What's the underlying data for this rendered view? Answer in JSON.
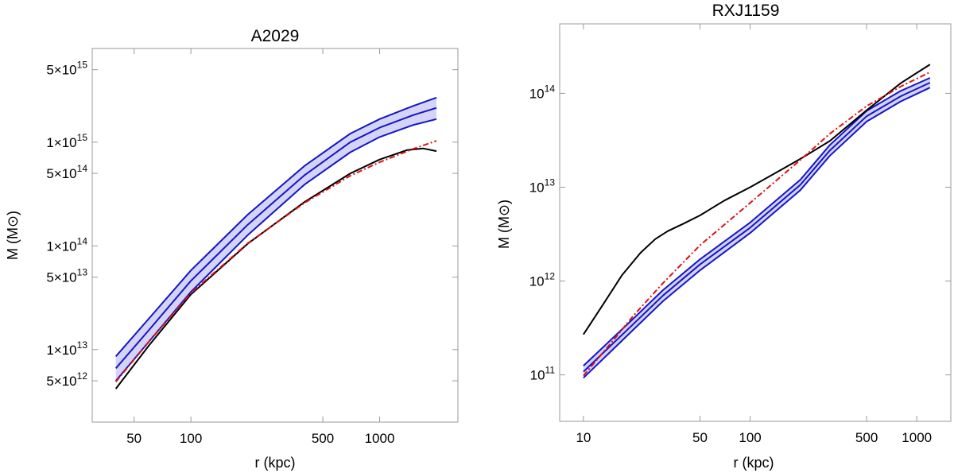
{
  "chart_data": [
    {
      "type": "line",
      "title": "A2029",
      "xlabel": "r (kpc)",
      "ylabel": "M (M⊙)",
      "x_scale": "log",
      "y_scale": "log",
      "xlim": [
        30,
        2600
      ],
      "ylim": [
        2000000000000.0,
        8000000000000000.0
      ],
      "x_ticks": [
        {
          "value": 50,
          "label": "50"
        },
        {
          "value": 100,
          "label": "100"
        },
        {
          "value": 500,
          "label": "500"
        },
        {
          "value": 1000,
          "label": "1000"
        }
      ],
      "y_ticks": [
        {
          "value": 5000000000000.0,
          "mant": "5",
          "exp": "12"
        },
        {
          "value": 10000000000000.0,
          "mant": "1",
          "exp": "13"
        },
        {
          "value": 50000000000000.0,
          "mant": "5",
          "exp": "13"
        },
        {
          "value": 100000000000000.0,
          "mant": "1",
          "exp": "14"
        },
        {
          "value": 500000000000000.0,
          "mant": "5",
          "exp": "14"
        },
        {
          "value": 1000000000000000.0,
          "mant": "1",
          "exp": "15"
        },
        {
          "value": 5000000000000000.0,
          "mant": "5",
          "exp": "15"
        }
      ],
      "grid": false,
      "band": {
        "color": "#1515c8",
        "fill": "#d4d4f6",
        "x": [
          40,
          60,
          100,
          200,
          400,
          700,
          1000,
          1500,
          2000
        ],
        "upper": [
          8600000000000.0,
          20000000000000.0,
          58000000000000.0,
          200000000000000.0,
          590000000000000.0,
          1210000000000000.0,
          1670000000000000.0,
          2230000000000000.0,
          2690000000000000.0
        ],
        "center": [
          6600000000000.0,
          15500000000000.0,
          46000000000000.0,
          160000000000000.0,
          480000000000000.0,
          1000000000000000.0,
          1380000000000000.0,
          1820000000000000.0,
          2140000000000000.0
        ],
        "lower": [
          5000000000000.0,
          12000000000000.0,
          36000000000000.0,
          127000000000000.0,
          390000000000000.0,
          800000000000000.0,
          1120000000000000.0,
          1460000000000000.0,
          1670000000000000.0
        ]
      },
      "series": [
        {
          "style": "solid",
          "color": "#000000",
          "x": [
            40,
            60,
            100,
            200,
            400,
            700,
            1000,
            1400,
            1700,
            2000
          ],
          "y": [
            4200000000000.0,
            11000000000000.0,
            34000000000000.0,
            105000000000000.0,
            265000000000000.0,
            500000000000000.0,
            680000000000000.0,
            840000000000000.0,
            870000000000000.0,
            820000000000000.0
          ]
        },
        {
          "style": "dashdot",
          "color": "#e01010",
          "x": [
            40,
            60,
            100,
            200,
            400,
            700,
            1000,
            1500,
            2000
          ],
          "y": [
            4900000000000.0,
            12000000000000.0,
            35000000000000.0,
            106000000000000.0,
            260000000000000.0,
            475000000000000.0,
            640000000000000.0,
            860000000000000.0,
            1030000000000000.0
          ]
        }
      ]
    },
    {
      "type": "line",
      "title": "RXJ1159",
      "xlabel": "r (kpc)",
      "ylabel": "M (M⊙)",
      "x_scale": "log",
      "y_scale": "log",
      "xlim": [
        7.2,
        1600
      ],
      "ylim": [
        32000000000.0,
        550000000000000.0
      ],
      "x_ticks": [
        {
          "value": 10,
          "label": "10"
        },
        {
          "value": 50,
          "label": "50"
        },
        {
          "value": 100,
          "label": "100"
        },
        {
          "value": 500,
          "label": "500"
        },
        {
          "value": 1000,
          "label": "1000"
        }
      ],
      "y_ticks": [
        {
          "value": 100000000000.0,
          "mant": "10",
          "exp": "11"
        },
        {
          "value": 1000000000000.0,
          "mant": "10",
          "exp": "12"
        },
        {
          "value": 10000000000000.0,
          "mant": "10",
          "exp": "13"
        },
        {
          "value": 100000000000000.0,
          "mant": "10",
          "exp": "14"
        }
      ],
      "grid": false,
      "band": {
        "color": "#1515c8",
        "fill": "#d4d4f6",
        "x": [
          10,
          20,
          30,
          50,
          100,
          200,
          300,
          500,
          800,
          1200
        ],
        "upper": [
          125000000000.0,
          400000000000.0,
          800000000000.0,
          1700000000000.0,
          4200000000000.0,
          12000000000000.0,
          28000000000000.0,
          65000000000000.0,
          106000000000000.0,
          146000000000000.0
        ],
        "center": [
          108000000000.0,
          350000000000.0,
          700000000000.0,
          1500000000000.0,
          3700000000000.0,
          10600000000000.0,
          24500000000000.0,
          57000000000000.0,
          93000000000000.0,
          130000000000000.0
        ],
        "lower": [
          93000000000.0,
          305000000000.0,
          610000000000.0,
          1300000000000.0,
          3250000000000.0,
          9300000000000.0,
          21500000000000.0,
          50000000000000.0,
          82000000000000.0,
          115000000000000.0
        ]
      },
      "series": [
        {
          "style": "solid",
          "color": "#000000",
          "x": [
            10,
            13,
            17,
            22,
            27,
            32,
            40,
            50,
            70,
            100,
            150,
            200,
            300,
            500,
            800,
            1200
          ],
          "y": [
            270000000000.0,
            550000000000.0,
            1150000000000.0,
            2000000000000.0,
            2800000000000.0,
            3400000000000.0,
            4100000000000.0,
            5000000000000.0,
            7200000000000.0,
            10000000000000.0,
            15000000000000.0,
            20000000000000.0,
            31000000000000.0,
            66000000000000.0,
            128000000000000.0,
            203000000000000.0
          ]
        },
        {
          "style": "dashdot",
          "color": "#e01010",
          "x": [
            10,
            15,
            20,
            30,
            50,
            100,
            200,
            300,
            500,
            800,
            1200
          ],
          "y": [
            98000000000.0,
            230000000000.0,
            430000000000.0,
            950000000000.0,
            2400000000000.0,
            6800000000000.0,
            19500000000000.0,
            37000000000000.0,
            73000000000000.0,
            118000000000000.0,
            168000000000000.0
          ]
        }
      ]
    }
  ]
}
